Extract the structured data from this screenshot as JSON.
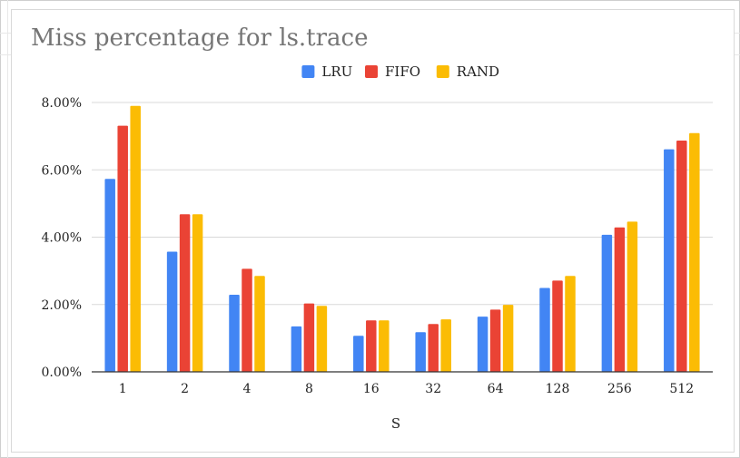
{
  "chart_data": {
    "type": "bar",
    "title": "Miss percentage for ls.trace",
    "xlabel": "S",
    "ylabel": "",
    "categories": [
      "1",
      "2",
      "4",
      "8",
      "16",
      "32",
      "64",
      "128",
      "256",
      "512"
    ],
    "series": [
      {
        "name": "LRU",
        "color": "#4285f4",
        "values": [
          5.73,
          3.57,
          2.29,
          1.35,
          1.07,
          1.18,
          1.64,
          2.49,
          4.07,
          6.61
        ]
      },
      {
        "name": "FIFO",
        "color": "#ea4335",
        "values": [
          7.31,
          4.68,
          3.06,
          2.03,
          1.53,
          1.42,
          1.85,
          2.71,
          4.29,
          6.87
        ]
      },
      {
        "name": "RAND",
        "color": "#fbbc04",
        "values": [
          7.9,
          4.68,
          2.85,
          1.96,
          1.53,
          1.56,
          1.99,
          2.85,
          4.46,
          7.09
        ]
      }
    ],
    "ylim": [
      0,
      8
    ],
    "yticks": [
      "0.00%",
      "2.00%",
      "4.00%",
      "6.00%",
      "8.00%"
    ],
    "ytick_values": [
      0,
      2,
      4,
      6,
      8
    ],
    "grid": true,
    "legend_position": "top-center"
  }
}
